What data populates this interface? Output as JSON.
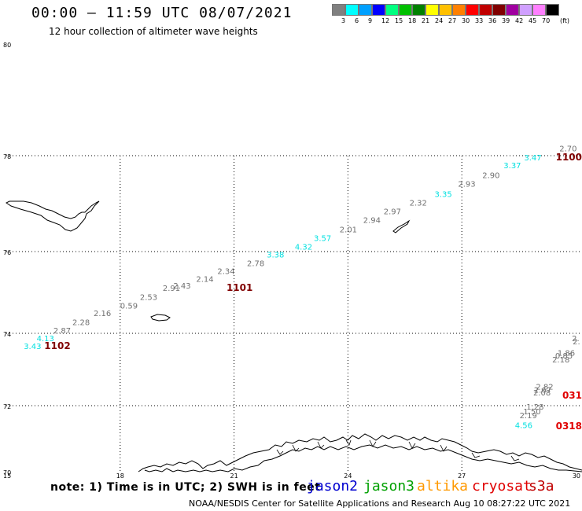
{
  "header": {
    "title": "00:00 – 11:59 UTC 08/07/2021",
    "subtitle": "12 hour collection of altimeter wave heights"
  },
  "colorbar": {
    "unit": "(ft)",
    "bins": [
      {
        "label": "3",
        "color": "#808080"
      },
      {
        "label": "6",
        "color": "#00ffff"
      },
      {
        "label": "9",
        "color": "#00a0ff"
      },
      {
        "label": "12",
        "color": "#0000ff"
      },
      {
        "label": "15",
        "color": "#00ff80"
      },
      {
        "label": "18",
        "color": "#00c000"
      },
      {
        "label": "21",
        "color": "#008000"
      },
      {
        "label": "24",
        "color": "#ffff00"
      },
      {
        "label": "27",
        "color": "#ffc000"
      },
      {
        "label": "30",
        "color": "#ff8000"
      },
      {
        "label": "33",
        "color": "#ff0000"
      },
      {
        "label": "36",
        "color": "#c00000"
      },
      {
        "label": "39",
        "color": "#800000"
      },
      {
        "label": "42",
        "color": "#a000a0"
      },
      {
        "label": "45",
        "color": "#d0a0ff"
      },
      {
        "label": "70",
        "color": "#ff80ff"
      },
      {
        "label": "",
        "color": "#000000"
      }
    ]
  },
  "map": {
    "lat_labels": [
      "80",
      "78",
      "76",
      "74",
      "72",
      "70"
    ],
    "lon_labels": [
      "15",
      "18",
      "21",
      "24",
      "27",
      "30"
    ],
    "colors": {
      "gray": "#707070",
      "cyan": "#00e0e0",
      "darkred": "#800000",
      "red": "#e00000"
    },
    "observations": [
      {
        "text": "3.43",
        "lon": 15.46,
        "lat": 73.57,
        "color": "cyan"
      },
      {
        "text": "4.13",
        "lon": 15.8,
        "lat": 73.78,
        "color": "cyan"
      },
      {
        "text": "2.87",
        "lon": 16.24,
        "lat": 74.0,
        "color": "gray"
      },
      {
        "text": "2.28",
        "lon": 16.74,
        "lat": 74.2,
        "color": "gray"
      },
      {
        "text": "2.16",
        "lon": 17.3,
        "lat": 74.42,
        "color": "gray"
      },
      {
        "text": "0.59",
        "lon": 18.0,
        "lat": 74.61,
        "color": "gray"
      },
      {
        "text": "2.53",
        "lon": 18.52,
        "lat": 74.82,
        "color": "gray"
      },
      {
        "text": "2.91",
        "lon": 19.12,
        "lat": 75.04,
        "color": "gray"
      },
      {
        "text": "2.43",
        "lon": 19.4,
        "lat": 75.1,
        "color": "gray"
      },
      {
        "text": "2.14",
        "lon": 20.0,
        "lat": 75.26,
        "color": "gray"
      },
      {
        "text": "2.34",
        "lon": 20.56,
        "lat": 75.45,
        "color": "gray"
      },
      {
        "text": "2.78",
        "lon": 21.34,
        "lat": 75.64,
        "color": "gray"
      },
      {
        "text": "3.38",
        "lon": 21.86,
        "lat": 75.86,
        "color": "cyan"
      },
      {
        "text": "4.32",
        "lon": 22.6,
        "lat": 76.04,
        "color": "cyan"
      },
      {
        "text": "3.57",
        "lon": 23.1,
        "lat": 76.22,
        "color": "cyan"
      },
      {
        "text": "2.01",
        "lon": 23.78,
        "lat": 76.4,
        "color": "gray"
      },
      {
        "text": "2.94",
        "lon": 24.4,
        "lat": 76.6,
        "color": "gray"
      },
      {
        "text": "2.97",
        "lon": 24.94,
        "lat": 76.78,
        "color": "gray"
      },
      {
        "text": "2.32",
        "lon": 25.62,
        "lat": 76.96,
        "color": "gray"
      },
      {
        "text": "3.35",
        "lon": 26.28,
        "lat": 77.14,
        "color": "cyan"
      },
      {
        "text": "2.93",
        "lon": 26.9,
        "lat": 77.35,
        "color": "gray"
      },
      {
        "text": "2.90",
        "lon": 27.54,
        "lat": 77.53,
        "color": "gray"
      },
      {
        "text": "3.37",
        "lon": 28.1,
        "lat": 77.74,
        "color": "cyan"
      },
      {
        "text": "3.47",
        "lon": 28.64,
        "lat": 77.9,
        "color": "cyan"
      },
      {
        "text": "2.70",
        "lon": 29.57,
        "lat": 78.08,
        "color": "gray"
      },
      {
        "text": "2.",
        "lon": 29.92,
        "lat": 73.7,
        "color": "gray"
      },
      {
        "text": "2.",
        "lon": 29.9,
        "lat": 73.78,
        "color": "gray"
      },
      {
        "text": "1.86",
        "lon": 29.52,
        "lat": 73.38,
        "color": "gray"
      },
      {
        "text": "0.85",
        "lon": 29.46,
        "lat": 73.3,
        "color": "gray"
      },
      {
        "text": "2.18",
        "lon": 29.38,
        "lat": 73.2,
        "color": "gray"
      },
      {
        "text": "2.82",
        "lon": 28.95,
        "lat": 72.45,
        "color": "gray"
      },
      {
        "text": "2.67",
        "lon": 28.9,
        "lat": 72.36,
        "color": "gray"
      },
      {
        "text": "2.08",
        "lon": 28.88,
        "lat": 72.28,
        "color": "gray"
      },
      {
        "text": "1.28",
        "lon": 28.7,
        "lat": 71.88,
        "color": "gray"
      },
      {
        "text": "1.50",
        "lon": 28.62,
        "lat": 71.74,
        "color": "gray"
      },
      {
        "text": "2.19",
        "lon": 28.52,
        "lat": 71.62,
        "color": "gray"
      },
      {
        "text": "4.56",
        "lon": 28.4,
        "lat": 71.32,
        "color": "cyan"
      }
    ],
    "track_ids": [
      {
        "text": "1102",
        "lon": 16.0,
        "lat": 73.56,
        "color": "darkred"
      },
      {
        "text": "1101",
        "lon": 20.8,
        "lat": 75.04,
        "color": "darkred"
      },
      {
        "text": "1100",
        "lon": 30.1,
        "lat": 77.9,
        "color": "darkred"
      },
      {
        "text": "031",
        "lon": 30.1,
        "lat": 72.2,
        "color": "red"
      },
      {
        "text": "0318",
        "lon": 29.7,
        "lat": 71.28,
        "color": "red"
      }
    ]
  },
  "footer": {
    "note": "note: 1) Time is in UTC; 2) SWH is in feet",
    "satellites": [
      {
        "name": "jason2",
        "color": "#0000d0"
      },
      {
        "name": "jason3",
        "color": "#00a000"
      },
      {
        "name": "altika",
        "color": "#ff9900"
      },
      {
        "name": "cryosat",
        "color": "#e00000"
      },
      {
        "name": "s3a",
        "color": "#c00000"
      }
    ],
    "credit": "NOAA/NESDIS Center for Satellite Applications and Research     Aug 10 08:27:22 UTC 2021"
  }
}
